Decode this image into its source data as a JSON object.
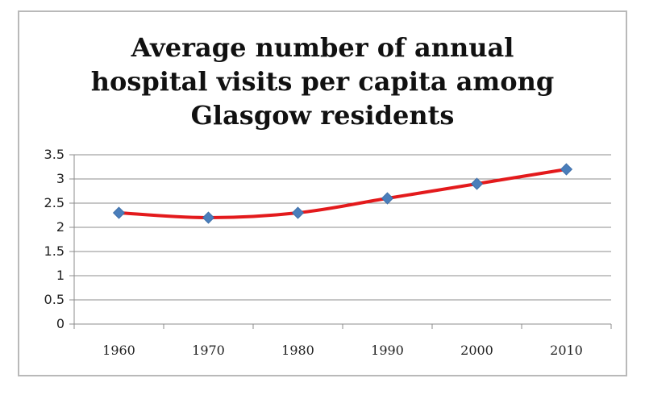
{
  "chart_data": {
    "type": "line",
    "title_lines": [
      "Average number of annual",
      "hospital visits per capita among",
      "Glasgow residents"
    ],
    "categories": [
      "1960",
      "1970",
      "1980",
      "1990",
      "2000",
      "2010"
    ],
    "series": [
      {
        "values": [
          2.3,
          2.2,
          2.3,
          2.6,
          2.9,
          3.2
        ],
        "line_color": "#e31a1c",
        "marker_color": "#4a7ebb",
        "marker": "diamond",
        "smooth": true
      }
    ],
    "y_ticks": [
      "0",
      "0.5",
      "1",
      "1.5",
      "2",
      "2.5",
      "3",
      "3.5"
    ],
    "ylim": [
      0,
      3.5
    ],
    "y_step": 0.5,
    "xlabel": "",
    "ylabel": "",
    "grid": true,
    "legend": "none"
  }
}
